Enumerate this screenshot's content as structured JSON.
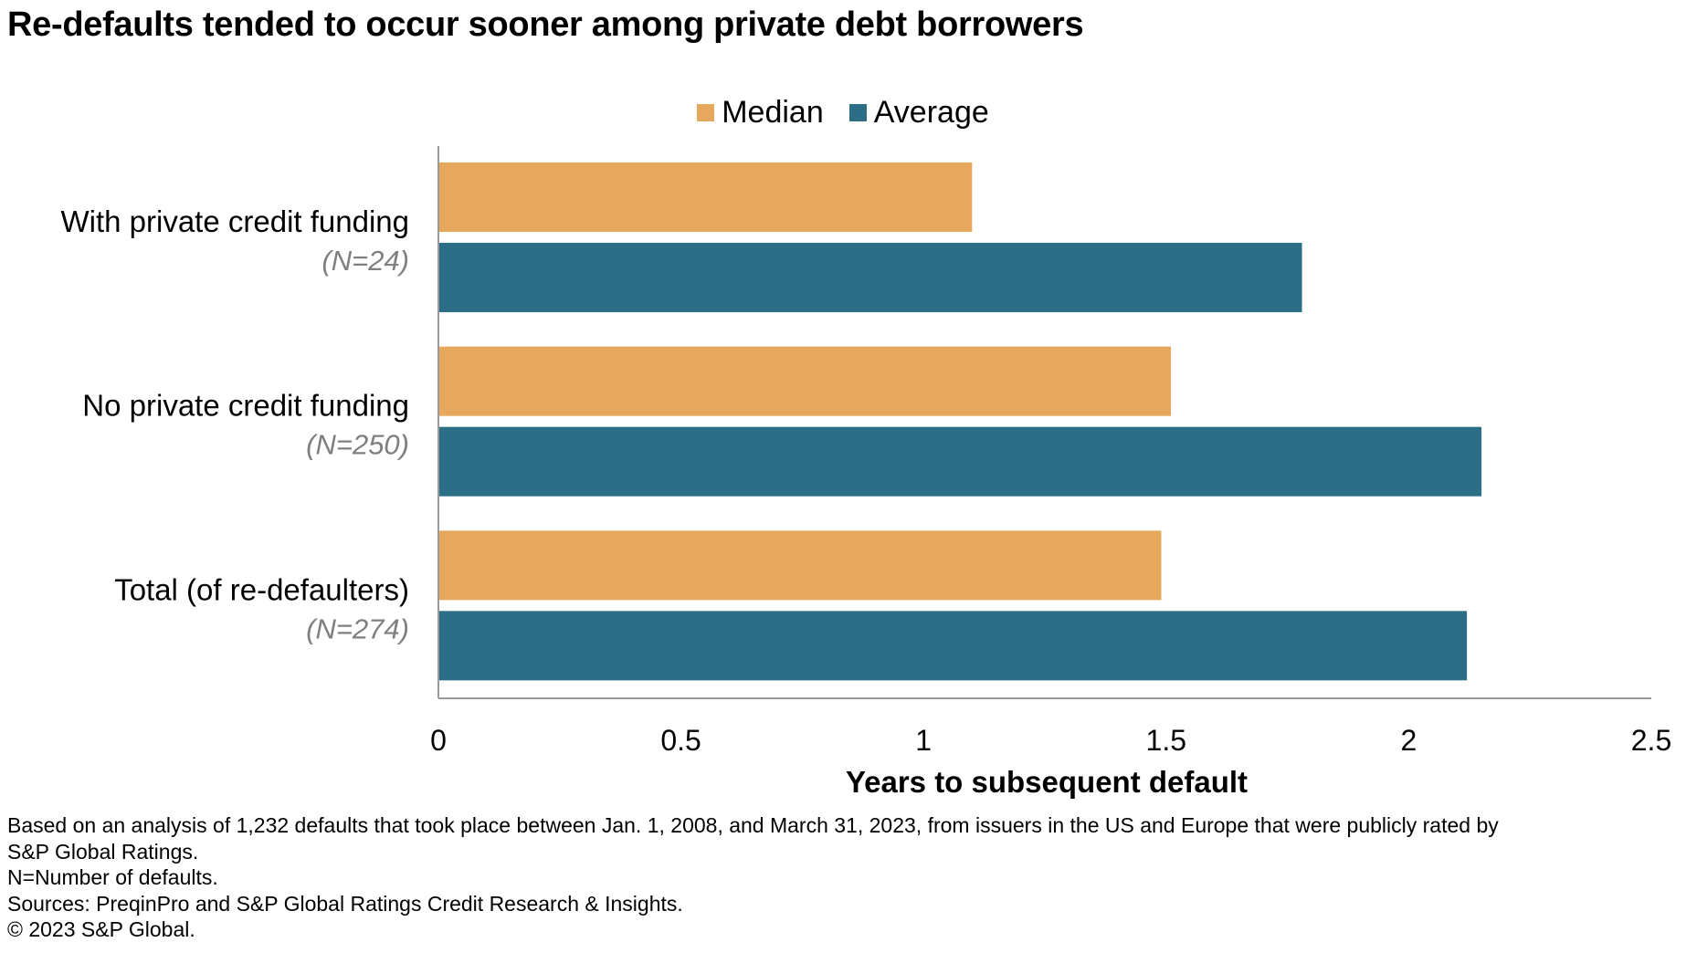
{
  "title": "Re-defaults tended to occur sooner among private debt borrowers",
  "chart_data": {
    "type": "bar",
    "orientation": "horizontal",
    "title": "Re-defaults tended to occur sooner among private debt borrowers",
    "categories": [
      {
        "label": "With private credit funding",
        "n": "(N=24)"
      },
      {
        "label": "No private credit funding",
        "n": "(N=250)"
      },
      {
        "label": "Total (of re-defaulters)",
        "n": "(N=274)"
      }
    ],
    "series": [
      {
        "name": "Median",
        "color": "#E6A85C",
        "values": [
          1.1,
          1.51,
          1.49
        ]
      },
      {
        "name": "Average",
        "color": "#2D6E87",
        "values": [
          1.78,
          2.15,
          2.12
        ]
      }
    ],
    "xlabel": "Years to subsequent default",
    "ylabel": "",
    "xlim": [
      0,
      2.5
    ],
    "ticks": [
      "0",
      "0.5",
      "1",
      "1.5",
      "2",
      "2.5"
    ],
    "grid": false,
    "legend": "top-center"
  },
  "notes": [
    "Based on an analysis of 1,232 defaults that took place between Jan. 1, 2008, and March 31, 2023, from issuers in the US and Europe that were publicly rated by",
    "S&P Global Ratings.",
    "N=Number of defaults.",
    "Sources: PreqinPro and S&P Global Ratings Credit Research & Insights.",
    "© 2023 S&P Global."
  ]
}
